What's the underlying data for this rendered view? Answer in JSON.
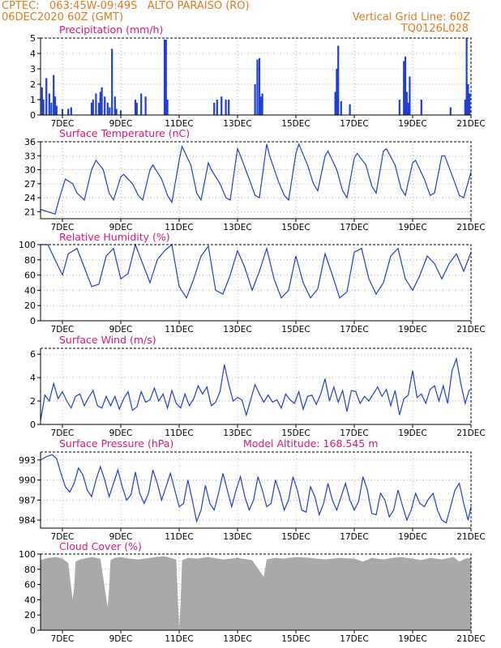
{
  "header": {
    "line1_left": "CPTEC:   063:45W-09:49S   ALTO PARAISO (RO)",
    "line2_left": "06DEC2020 60Z (GMT)",
    "line1_right": "Vertical Grid Line: 60Z",
    "line2_right": "TQ0126L028",
    "color": "#e07a1f"
  },
  "colors": {
    "series": "#1f3fd6",
    "title": "#e0147a",
    "cloud": "#a9a9a9",
    "grid": "#aaaaaa"
  },
  "x_axis": {
    "ticks": [
      "7DEC",
      "9DEC",
      "11DEC",
      "13DEC",
      "15DEC",
      "17DEC",
      "19DEC",
      "21DEC"
    ],
    "start_day": 6.25,
    "end_day": 21
  },
  "chart_data": [
    {
      "type": "bar",
      "title": "Precipitation (mm/h)",
      "ylim": [
        0,
        5
      ],
      "yticks": [
        0,
        1,
        2,
        3,
        4,
        5
      ],
      "grid": "dotted",
      "x": [
        6.3,
        6.35,
        6.45,
        6.55,
        6.62,
        6.7,
        6.75,
        6.8,
        7.0,
        7.2,
        7.3,
        8.0,
        8.05,
        8.15,
        8.25,
        8.3,
        8.35,
        8.45,
        8.55,
        8.62,
        8.7,
        8.8,
        8.85,
        9.0,
        9.5,
        9.55,
        9.7,
        9.85,
        10.5,
        10.55,
        10.6,
        12.2,
        12.3,
        12.45,
        12.6,
        12.7,
        13.6,
        13.68,
        13.75,
        13.8,
        13.85,
        16.35,
        16.4,
        16.45,
        16.55,
        16.85,
        18.55,
        18.7,
        18.75,
        18.8,
        18.85,
        18.9,
        19.3,
        20.3,
        20.8,
        20.85,
        20.9,
        20.95
      ],
      "values": [
        1.8,
        1.0,
        2.4,
        1.4,
        0.8,
        2.6,
        1.2,
        0.6,
        0.4,
        0.4,
        0.5,
        0.8,
        1.0,
        1.4,
        0.8,
        1.5,
        1.8,
        1.2,
        0.8,
        0.5,
        4.3,
        1.2,
        0.4,
        0.3,
        1.0,
        0.8,
        1.4,
        1.2,
        4.9,
        4.9,
        1.0,
        0.8,
        1.0,
        1.2,
        1.0,
        1.0,
        2.0,
        3.6,
        3.7,
        1.2,
        1.4,
        1.5,
        3.0,
        4.5,
        0.9,
        0.7,
        1.0,
        3.5,
        3.8,
        1.5,
        0.8,
        2.5,
        1.0,
        0.5,
        1.0,
        5.0,
        2.0,
        1.4
      ]
    },
    {
      "type": "line",
      "title": "Surface Temperature (nC)",
      "ylim": [
        19.5,
        36
      ],
      "yticks": [
        21,
        24,
        27,
        30,
        33,
        36
      ],
      "grid": "dotted",
      "x": [
        6.25,
        6.5,
        6.75,
        6.9,
        7.1,
        7.35,
        7.5,
        7.75,
        8.0,
        8.15,
        8.4,
        8.6,
        8.75,
        9.0,
        9.1,
        9.4,
        9.6,
        9.75,
        10.0,
        10.1,
        10.4,
        10.6,
        10.75,
        11.0,
        11.1,
        11.4,
        11.6,
        11.75,
        12.0,
        12.1,
        12.4,
        12.6,
        12.75,
        13.0,
        13.1,
        13.4,
        13.6,
        13.75,
        14.0,
        14.1,
        14.4,
        14.6,
        14.75,
        15.0,
        15.1,
        15.4,
        15.6,
        15.75,
        16.0,
        16.1,
        16.4,
        16.6,
        16.75,
        17.0,
        17.1,
        17.4,
        17.6,
        17.75,
        18.0,
        18.1,
        18.4,
        18.6,
        18.75,
        19.0,
        19.1,
        19.4,
        19.6,
        19.75,
        20.0,
        20.1,
        20.4,
        20.6,
        20.75,
        21.0
      ],
      "values": [
        21.5,
        21.0,
        20.5,
        24.0,
        28.0,
        27.0,
        25.0,
        23.5,
        30.0,
        32.0,
        30.0,
        25.0,
        23.5,
        28.5,
        29.0,
        27.0,
        24.5,
        23.5,
        30.0,
        31.0,
        28.0,
        24.5,
        23.0,
        32.0,
        35.0,
        31.0,
        25.0,
        23.5,
        31.5,
        30.0,
        27.0,
        24.0,
        23.5,
        34.5,
        33.0,
        28.0,
        24.5,
        24.0,
        35.5,
        33.0,
        27.5,
        24.5,
        23.5,
        33.5,
        35.5,
        31.0,
        27.0,
        25.5,
        33.0,
        34.0,
        30.0,
        25.5,
        24.0,
        32.5,
        33.5,
        31.0,
        26.5,
        25.0,
        34.0,
        34.5,
        31.0,
        26.0,
        24.5,
        31.5,
        32.0,
        28.0,
        24.5,
        25.0,
        33.0,
        33.0,
        28.0,
        24.5,
        24.0,
        29.5
      ]
    },
    {
      "type": "line",
      "title": "Relative Humidity (%)",
      "ylim": [
        0,
        100
      ],
      "yticks": [
        0,
        20,
        40,
        60,
        80,
        100
      ],
      "grid": "dotted",
      "x": [
        6.25,
        6.5,
        6.75,
        7.0,
        7.2,
        7.5,
        7.7,
        8.0,
        8.25,
        8.5,
        8.75,
        9.0,
        9.25,
        9.5,
        9.75,
        10.0,
        10.25,
        10.5,
        10.75,
        11.0,
        11.25,
        11.5,
        11.75,
        12.0,
        12.25,
        12.5,
        12.75,
        13.0,
        13.25,
        13.5,
        13.75,
        14.0,
        14.25,
        14.5,
        14.75,
        15.0,
        15.25,
        15.5,
        15.75,
        16.0,
        16.25,
        16.5,
        16.75,
        17.0,
        17.25,
        17.5,
        17.75,
        18.0,
        18.25,
        18.5,
        18.75,
        19.0,
        19.25,
        19.5,
        19.75,
        20.0,
        20.25,
        20.5,
        20.75,
        21.0
      ],
      "values": [
        100,
        100,
        80,
        60,
        88,
        95,
        75,
        45,
        48,
        85,
        95,
        55,
        62,
        100,
        75,
        50,
        80,
        92,
        100,
        45,
        30,
        55,
        85,
        98,
        40,
        35,
        60,
        92,
        70,
        40,
        65,
        95,
        55,
        30,
        40,
        85,
        50,
        30,
        42,
        88,
        60,
        30,
        38,
        90,
        95,
        55,
        35,
        50,
        85,
        95,
        55,
        40,
        60,
        85,
        75,
        55,
        75,
        88,
        65,
        90
      ]
    },
    {
      "type": "line",
      "title": "Surface Wind (m/s)",
      "ylim": [
        0,
        6.5
      ],
      "yticks": [
        0,
        2,
        4,
        6
      ],
      "grid": "dotted",
      "x": [
        6.25,
        6.4,
        6.55,
        6.7,
        6.85,
        7.0,
        7.15,
        7.3,
        7.45,
        7.6,
        7.75,
        7.9,
        8.05,
        8.2,
        8.35,
        8.5,
        8.65,
        8.8,
        8.95,
        9.1,
        9.25,
        9.4,
        9.55,
        9.7,
        9.85,
        10.0,
        10.15,
        10.3,
        10.45,
        10.6,
        10.75,
        10.9,
        11.05,
        11.2,
        11.35,
        11.5,
        11.65,
        11.8,
        11.95,
        12.1,
        12.25,
        12.4,
        12.55,
        12.7,
        12.85,
        13.0,
        13.15,
        13.3,
        13.45,
        13.6,
        13.75,
        13.9,
        14.05,
        14.2,
        14.35,
        14.5,
        14.65,
        14.8,
        14.95,
        15.1,
        15.25,
        15.4,
        15.55,
        15.7,
        15.85,
        16.0,
        16.15,
        16.3,
        16.45,
        16.6,
        16.75,
        16.9,
        17.05,
        17.2,
        17.35,
        17.5,
        17.65,
        17.8,
        17.95,
        18.1,
        18.25,
        18.4,
        18.55,
        18.7,
        18.85,
        19.0,
        19.15,
        19.3,
        19.45,
        19.6,
        19.75,
        19.9,
        20.05,
        20.2,
        20.35,
        20.5,
        20.65,
        20.8,
        20.95
      ],
      "values": [
        0.3,
        2.5,
        2.0,
        3.5,
        2.2,
        2.8,
        2.0,
        1.4,
        2.4,
        2.6,
        1.6,
        2.3,
        2.9,
        1.6,
        1.4,
        2.4,
        1.6,
        2.4,
        1.3,
        2.2,
        2.8,
        1.2,
        1.5,
        2.8,
        1.9,
        2.1,
        3.1,
        2.0,
        2.6,
        1.4,
        2.9,
        1.8,
        1.4,
        2.6,
        1.6,
        2.2,
        3.3,
        2.6,
        3.2,
        1.6,
        1.9,
        2.8,
        5.1,
        3.4,
        2.0,
        2.3,
        2.1,
        0.8,
        2.1,
        3.4,
        2.6,
        1.9,
        2.5,
        1.9,
        2.1,
        1.4,
        2.6,
        2.1,
        1.8,
        2.8,
        1.3,
        2.4,
        2.5,
        1.7,
        2.6,
        3.9,
        2.0,
        3.2,
        1.9,
        2.9,
        1.1,
        2.9,
        2.8,
        1.8,
        2.4,
        2.0,
        2.6,
        3.2,
        2.4,
        3.0,
        1.6,
        2.9,
        0.8,
        2.2,
        2.5,
        4.6,
        2.3,
        2.6,
        1.8,
        3.0,
        3.3,
        2.0,
        3.3,
        1.8,
        4.6,
        5.6,
        3.5,
        1.8,
        3.0
      ]
    },
    {
      "type": "line",
      "title": "Surface Pressure (hPa)",
      "annotation": "Model Altitude: 168.545 m",
      "ylim": [
        982.8,
        994.2
      ],
      "yticks": [
        984,
        987,
        990,
        993
      ],
      "grid": "dotted",
      "x": [
        6.25,
        6.45,
        6.65,
        6.8,
        6.95,
        7.1,
        7.25,
        7.4,
        7.55,
        7.7,
        7.85,
        8.0,
        8.15,
        8.3,
        8.45,
        8.6,
        8.75,
        8.9,
        9.05,
        9.2,
        9.35,
        9.5,
        9.65,
        9.8,
        9.95,
        10.1,
        10.25,
        10.4,
        10.55,
        10.7,
        10.85,
        11.0,
        11.15,
        11.3,
        11.45,
        11.6,
        11.75,
        11.9,
        12.05,
        12.2,
        12.35,
        12.5,
        12.65,
        12.8,
        12.95,
        13.1,
        13.25,
        13.4,
        13.55,
        13.7,
        13.85,
        14.0,
        14.15,
        14.3,
        14.45,
        14.6,
        14.75,
        14.9,
        15.05,
        15.2,
        15.35,
        15.5,
        15.65,
        15.8,
        15.95,
        16.1,
        16.25,
        16.4,
        16.55,
        16.7,
        16.85,
        17.0,
        17.15,
        17.3,
        17.45,
        17.6,
        17.75,
        17.9,
        18.05,
        18.2,
        18.35,
        18.5,
        18.65,
        18.8,
        18.95,
        19.1,
        19.25,
        19.4,
        19.55,
        19.7,
        19.85,
        20.0,
        20.15,
        20.3,
        20.45,
        20.6,
        20.75,
        20.9,
        21.0
      ],
      "values": [
        993.0,
        993.5,
        993.8,
        993.2,
        991.0,
        989.0,
        988.2,
        989.5,
        991.8,
        990.8,
        988.5,
        987.5,
        990.0,
        992.0,
        990.0,
        987.5,
        989.5,
        991.5,
        989.0,
        987.0,
        987.8,
        991.2,
        988.0,
        986.5,
        988.0,
        991.5,
        989.5,
        987.0,
        989.0,
        991.0,
        988.5,
        986.0,
        986.5,
        990.0,
        987.0,
        983.8,
        985.5,
        989.2,
        986.5,
        985.5,
        988.0,
        991.0,
        988.5,
        986.0,
        988.5,
        990.5,
        987.5,
        985.5,
        987.0,
        990.5,
        988.5,
        986.0,
        986.5,
        990.0,
        988.0,
        985.5,
        987.0,
        990.5,
        988.5,
        985.5,
        985.2,
        989.0,
        987.5,
        984.8,
        986.5,
        989.5,
        987.0,
        985.5,
        987.5,
        989.5,
        987.0,
        985.5,
        986.8,
        990.5,
        988.5,
        985.0,
        984.8,
        988.0,
        987.0,
        984.5,
        985.5,
        988.5,
        986.2,
        984.0,
        985.5,
        988.0,
        986.5,
        986.0,
        987.2,
        988.0,
        985.5,
        984.0,
        983.6,
        986.0,
        988.5,
        989.5,
        986.5,
        984.0,
        986.0
      ]
    },
    {
      "type": "area",
      "title": "Cloud Cover (%)",
      "ylim": [
        0,
        100
      ],
      "yticks": [
        0,
        20,
        40,
        60,
        80,
        100
      ],
      "grid": "dotted",
      "x": [
        6.25,
        6.5,
        6.8,
        7.0,
        7.2,
        7.35,
        7.4,
        7.45,
        7.6,
        8.0,
        8.3,
        8.55,
        8.6,
        8.65,
        8.8,
        9.0,
        9.3,
        9.6,
        10.0,
        10.2,
        10.5,
        10.9,
        11.0,
        11.05,
        11.1,
        11.3,
        11.6,
        12.0,
        12.5,
        13.0,
        13.5,
        13.9,
        14.0,
        14.3,
        14.6,
        15.0,
        15.5,
        16.0,
        16.5,
        17.0,
        17.3,
        17.6,
        18.0,
        18.3,
        18.6,
        19.0,
        19.3,
        19.6,
        20.0,
        20.4,
        20.6,
        20.8,
        21.0
      ],
      "values": [
        92,
        95,
        96,
        94,
        88,
        40,
        55,
        90,
        93,
        96,
        94,
        30,
        55,
        92,
        95,
        96,
        94,
        93,
        95,
        96,
        97,
        93,
        2,
        35,
        92,
        95,
        94,
        96,
        93,
        95,
        92,
        70,
        93,
        95,
        94,
        96,
        95,
        93,
        95,
        94,
        90,
        95,
        93,
        95,
        96,
        94,
        92,
        95,
        93,
        96,
        90,
        94,
        95
      ]
    }
  ]
}
